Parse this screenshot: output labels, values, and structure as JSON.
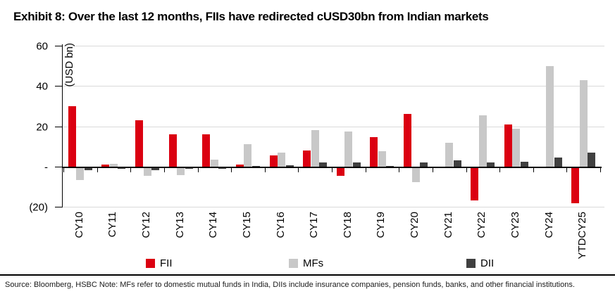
{
  "title": "Exhibit 8: Over the last 12 months, FIIs have redirected cUSD30bn from Indian markets",
  "footer": "Source: Bloomberg, HSBC Note: MFs refer to domestic mutual funds in India, DIIs include insurance companies, pension funds, banks, and other financial institutions.",
  "chart_data": {
    "type": "bar",
    "title": "Exhibit 8: Over the last 12 months, FIIs have redirected cUSD30bn from Indian markets",
    "ylabel": "(USD bn)",
    "xlabel": "",
    "ylim": [
      -20,
      60
    ],
    "grid": true,
    "legend_position": "bottom",
    "categories": [
      "CY10",
      "CY11",
      "CY12",
      "CY13",
      "CY14",
      "CY15",
      "CY16",
      "CY17",
      "CY18",
      "CY19",
      "CY20",
      "CY21",
      "CY22",
      "CY23",
      "CY24",
      "YTDCY25"
    ],
    "series": [
      {
        "name": "FII",
        "color": "#db0011",
        "values": [
          30,
          1,
          23,
          16,
          16,
          1,
          5.5,
          8,
          -4,
          14.5,
          26,
          0,
          -16,
          21,
          0,
          -17.5
        ]
      },
      {
        "name": "MFs",
        "color": "#c8c8c8",
        "values": [
          -6,
          1.5,
          -4,
          -3.5,
          3.5,
          11,
          7,
          18,
          17.5,
          7.5,
          -7,
          12,
          25.5,
          19,
          50,
          43
        ]
      },
      {
        "name": "DII",
        "color": "#404040",
        "values": [
          -1,
          -0.5,
          -1,
          -0.5,
          -0.5,
          0.5,
          0.8,
          2,
          2,
          0.5,
          2,
          3,
          2,
          2.5,
          4.5,
          7
        ]
      }
    ],
    "y_ticks": [
      {
        "label": "60",
        "value": 60
      },
      {
        "label": "40",
        "value": 40
      },
      {
        "label": "20",
        "value": 20
      },
      {
        "label": "-",
        "value": 0
      },
      {
        "label": "(20)",
        "value": -20
      }
    ]
  }
}
